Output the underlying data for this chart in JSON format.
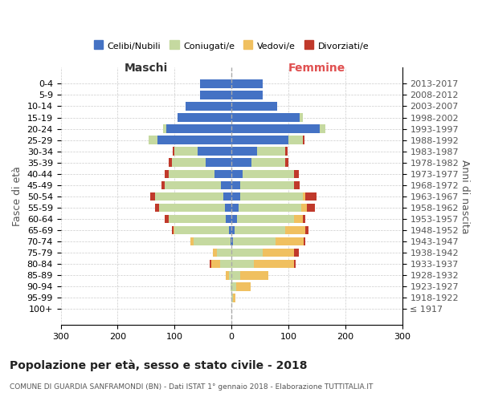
{
  "age_groups": [
    "100+",
    "95-99",
    "90-94",
    "85-89",
    "80-84",
    "75-79",
    "70-74",
    "65-69",
    "60-64",
    "55-59",
    "50-54",
    "45-49",
    "40-44",
    "35-39",
    "30-34",
    "25-29",
    "20-24",
    "15-19",
    "10-14",
    "5-9",
    "0-4"
  ],
  "birth_years": [
    "≤ 1917",
    "1918-1922",
    "1923-1927",
    "1928-1932",
    "1933-1937",
    "1938-1942",
    "1943-1947",
    "1948-1952",
    "1953-1957",
    "1958-1962",
    "1963-1967",
    "1968-1972",
    "1973-1977",
    "1978-1982",
    "1983-1987",
    "1988-1992",
    "1993-1997",
    "1998-2002",
    "2003-2007",
    "2008-2012",
    "2013-2017"
  ],
  "male": {
    "celibi": [
      0,
      0,
      0,
      0,
      0,
      0,
      2,
      5,
      10,
      12,
      15,
      18,
      30,
      45,
      60,
      130,
      115,
      95,
      80,
      55,
      55
    ],
    "coniugati": [
      0,
      0,
      2,
      5,
      20,
      25,
      65,
      95,
      100,
      115,
      120,
      100,
      80,
      60,
      40,
      15,
      5,
      0,
      0,
      0,
      0
    ],
    "vedovi": [
      0,
      0,
      0,
      5,
      15,
      8,
      5,
      2,
      0,
      0,
      0,
      0,
      0,
      0,
      0,
      0,
      0,
      0,
      0,
      0,
      0
    ],
    "divorziati": [
      0,
      0,
      0,
      0,
      3,
      0,
      0,
      2,
      8,
      8,
      8,
      5,
      8,
      5,
      3,
      0,
      0,
      0,
      0,
      0,
      0
    ]
  },
  "female": {
    "nubili": [
      0,
      0,
      0,
      0,
      0,
      0,
      2,
      5,
      10,
      12,
      15,
      15,
      20,
      35,
      45,
      100,
      155,
      120,
      80,
      55,
      55
    ],
    "coniugate": [
      0,
      2,
      8,
      15,
      40,
      55,
      75,
      90,
      100,
      110,
      110,
      95,
      90,
      60,
      50,
      25,
      10,
      5,
      0,
      0,
      0
    ],
    "vedove": [
      0,
      5,
      25,
      50,
      70,
      55,
      50,
      35,
      15,
      10,
      5,
      0,
      0,
      0,
      0,
      0,
      0,
      0,
      0,
      0,
      0
    ],
    "divorziate": [
      0,
      0,
      0,
      0,
      3,
      8,
      2,
      5,
      5,
      15,
      20,
      10,
      8,
      5,
      3,
      3,
      0,
      0,
      0,
      0,
      0
    ]
  },
  "colors": {
    "celibi_nubili": "#4472c4",
    "coniugati": "#c5d9a0",
    "vedovi": "#f0c060",
    "divorziati": "#c0392b"
  },
  "title": "Popolazione per età, sesso e stato civile - 2018",
  "subtitle": "COMUNE DI GUARDIA SANFRAMONDI (BN) - Dati ISTAT 1° gennaio 2018 - Elaborazione TUTTITALIA.IT",
  "xlabel_left": "Maschi",
  "xlabel_right": "Femmine",
  "ylabel_left": "Fasce di età",
  "ylabel_right": "Anni di nascita",
  "xlim": 300,
  "legend_labels": [
    "Celibi/Nubili",
    "Coniugati/e",
    "Vedovi/e",
    "Divorziati/e"
  ],
  "background_color": "#ffffff",
  "grid_color": "#cccccc"
}
